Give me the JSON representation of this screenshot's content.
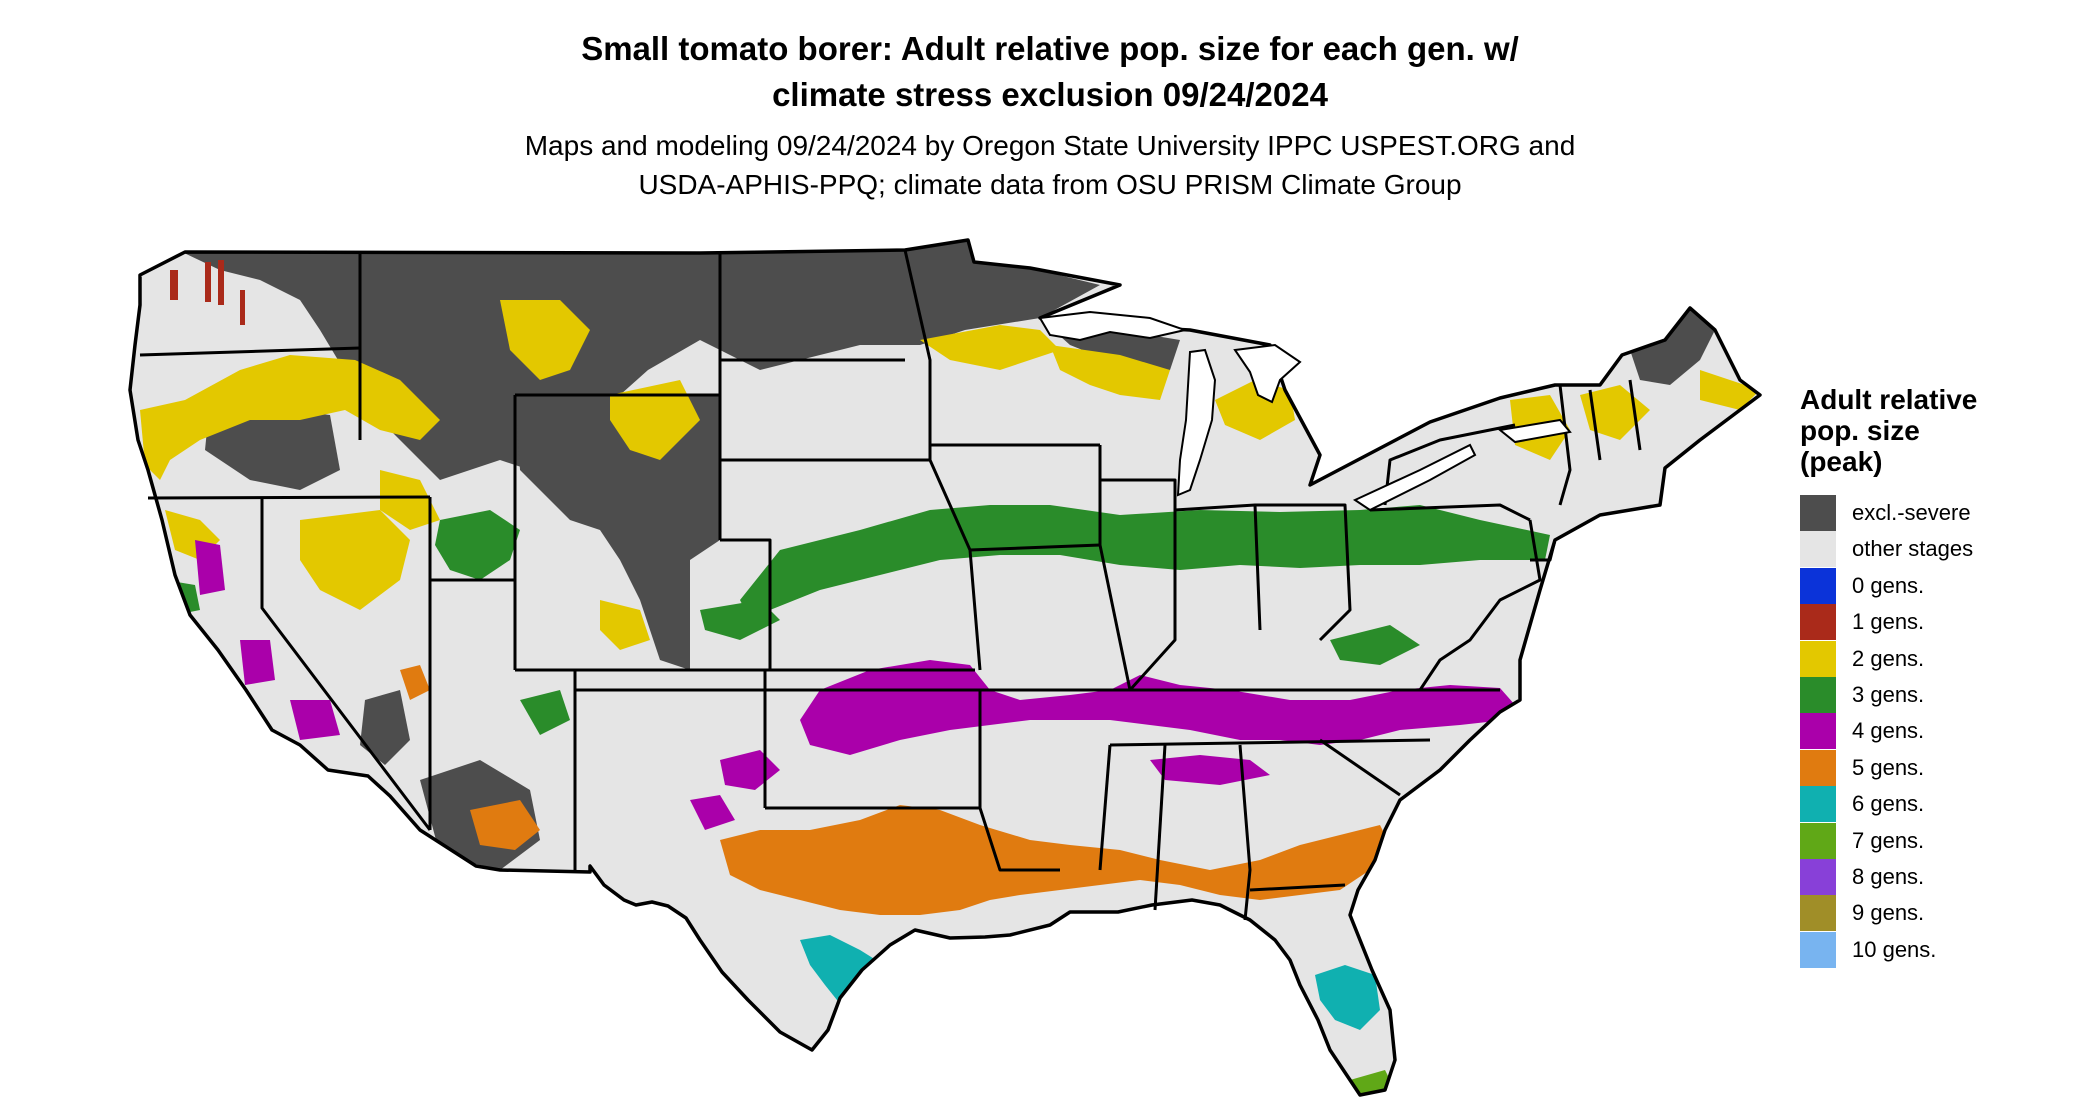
{
  "title": {
    "line1": "Small tomato borer: Adult relative pop. size for each gen. w/",
    "line2": "climate stress exclusion 09/24/2024"
  },
  "subtitle": {
    "line1": "Maps and modeling 09/24/2024 by Oregon State University IPPC USPEST.ORG and",
    "line2": "USDA-APHIS-PPQ; climate data from OSU PRISM Climate Group"
  },
  "legend": {
    "title_lines": [
      "Adult relative",
      "pop. size",
      "(peak)"
    ],
    "items": [
      {
        "label": "excl.-severe",
        "color": "#4d4d4d"
      },
      {
        "label": "other stages",
        "color": "#e5e5e5"
      },
      {
        "label": "0 gens.",
        "color": "#0b33d9"
      },
      {
        "label": "1 gens.",
        "color": "#aa2a1a"
      },
      {
        "label": "2 gens.",
        "color": "#e3c800"
      },
      {
        "label": "3 gens.",
        "color": "#2a8c2a"
      },
      {
        "label": "4 gens.",
        "color": "#aa00aa"
      },
      {
        "label": "5 gens.",
        "color": "#e07b10"
      },
      {
        "label": "6 gens.",
        "color": "#10b0b0"
      },
      {
        "label": "7 gens.",
        "color": "#60a817"
      },
      {
        "label": "8 gens.",
        "color": "#8840d8"
      },
      {
        "label": "9 gens.",
        "color": "#a08e28"
      },
      {
        "label": "10 gens.",
        "color": "#78b4f0"
      }
    ]
  },
  "map": {
    "base_color": "#e5e5e5",
    "border_color": "#000000"
  }
}
